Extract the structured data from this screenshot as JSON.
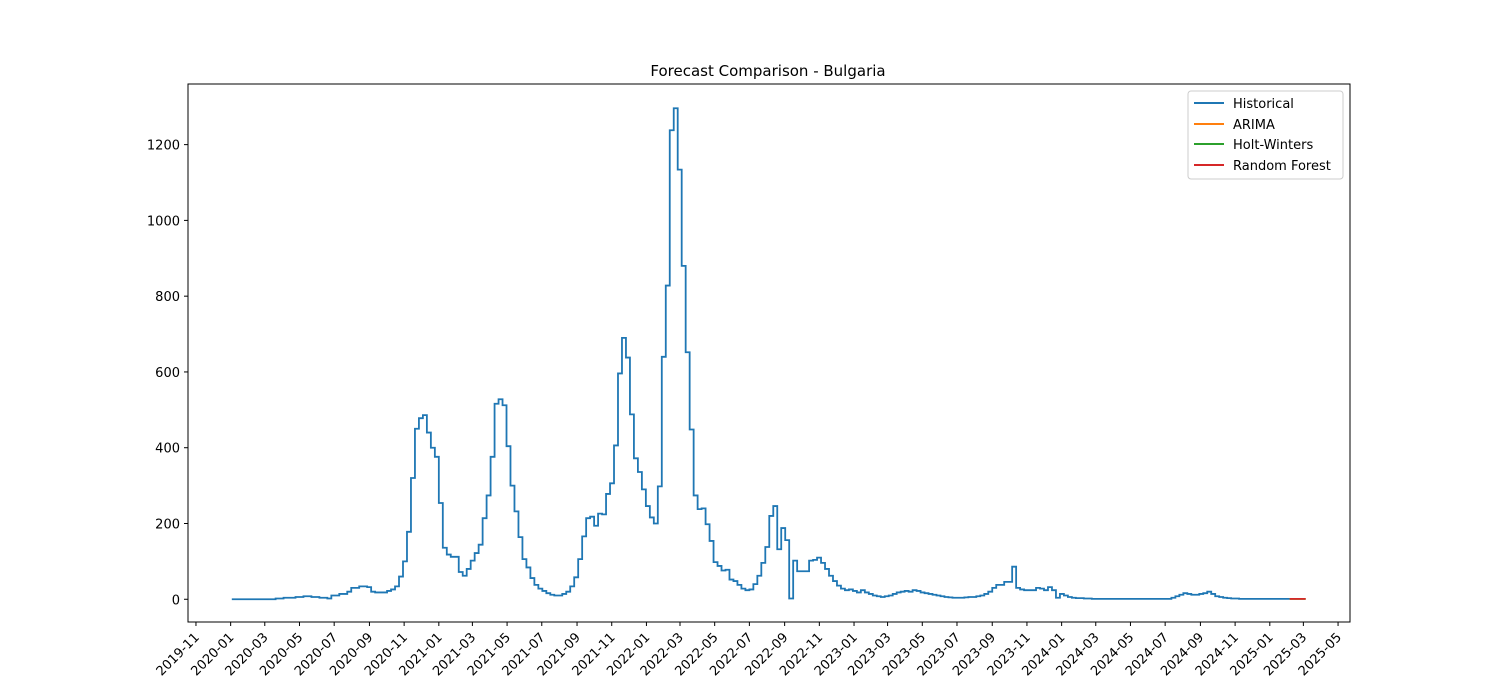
{
  "chart_data": {
    "type": "line",
    "title": "Forecast Comparison - Bulgaria",
    "xlabel": "",
    "ylabel": "",
    "x_range": [
      "2019-10-18",
      "2025-05-22"
    ],
    "ylim": [
      -60,
      1360
    ],
    "y_ticks": [
      0,
      200,
      400,
      600,
      800,
      1000,
      1200
    ],
    "x_ticks": [
      "2019-11",
      "2020-01",
      "2020-03",
      "2020-05",
      "2020-07",
      "2020-09",
      "2020-11",
      "2021-01",
      "2021-03",
      "2021-05",
      "2021-07",
      "2021-09",
      "2021-11",
      "2022-01",
      "2022-03",
      "2022-05",
      "2022-07",
      "2022-09",
      "2022-11",
      "2023-01",
      "2023-03",
      "2023-05",
      "2023-07",
      "2023-09",
      "2023-11",
      "2024-01",
      "2024-03",
      "2024-05",
      "2024-07",
      "2024-09",
      "2024-11",
      "2025-01",
      "2025-03",
      "2025-05"
    ],
    "grid": false,
    "legend_position": "top-right",
    "series": [
      {
        "name": "Historical",
        "color": "#1f77b4",
        "step": true,
        "points": [
          [
            "2020-01-03",
            0
          ],
          [
            "2020-03-13",
            0
          ],
          [
            "2020-03-20",
            2
          ],
          [
            "2020-04-03",
            4
          ],
          [
            "2020-04-24",
            6
          ],
          [
            "2020-05-08",
            8
          ],
          [
            "2020-05-22",
            6
          ],
          [
            "2020-06-05",
            4
          ],
          [
            "2020-06-19",
            2
          ],
          [
            "2020-06-26",
            10
          ],
          [
            "2020-07-10",
            14
          ],
          [
            "2020-07-24",
            20
          ],
          [
            "2020-07-31",
            30
          ],
          [
            "2020-08-14",
            34
          ],
          [
            "2020-08-28",
            32
          ],
          [
            "2020-09-04",
            20
          ],
          [
            "2020-09-11",
            18
          ],
          [
            "2020-09-25",
            18
          ],
          [
            "2020-10-02",
            22
          ],
          [
            "2020-10-09",
            26
          ],
          [
            "2020-10-16",
            34
          ],
          [
            "2020-10-23",
            60
          ],
          [
            "2020-10-30",
            100
          ],
          [
            "2020-11-06",
            178
          ],
          [
            "2020-11-13",
            320
          ],
          [
            "2020-11-20",
            450
          ],
          [
            "2020-11-27",
            478
          ],
          [
            "2020-12-04",
            486
          ],
          [
            "2020-12-11",
            440
          ],
          [
            "2020-12-18",
            400
          ],
          [
            "2020-12-25",
            376
          ],
          [
            "2021-01-01",
            254
          ],
          [
            "2021-01-08",
            136
          ],
          [
            "2021-01-15",
            118
          ],
          [
            "2021-01-22",
            112
          ],
          [
            "2021-02-05",
            72
          ],
          [
            "2021-02-12",
            62
          ],
          [
            "2021-02-19",
            80
          ],
          [
            "2021-02-26",
            102
          ],
          [
            "2021-03-05",
            122
          ],
          [
            "2021-03-12",
            144
          ],
          [
            "2021-03-19",
            214
          ],
          [
            "2021-03-26",
            274
          ],
          [
            "2021-04-02",
            376
          ],
          [
            "2021-04-09",
            516
          ],
          [
            "2021-04-16",
            528
          ],
          [
            "2021-04-23",
            512
          ],
          [
            "2021-04-30",
            404
          ],
          [
            "2021-05-07",
            300
          ],
          [
            "2021-05-14",
            232
          ],
          [
            "2021-05-21",
            164
          ],
          [
            "2021-05-28",
            106
          ],
          [
            "2021-06-04",
            84
          ],
          [
            "2021-06-11",
            56
          ],
          [
            "2021-06-18",
            38
          ],
          [
            "2021-06-25",
            28
          ],
          [
            "2021-07-02",
            22
          ],
          [
            "2021-07-09",
            16
          ],
          [
            "2021-07-16",
            12
          ],
          [
            "2021-07-23",
            10
          ],
          [
            "2021-07-30",
            10
          ],
          [
            "2021-08-06",
            14
          ],
          [
            "2021-08-13",
            20
          ],
          [
            "2021-08-20",
            34
          ],
          [
            "2021-08-27",
            58
          ],
          [
            "2021-09-03",
            106
          ],
          [
            "2021-09-10",
            166
          ],
          [
            "2021-09-17",
            214
          ],
          [
            "2021-09-24",
            218
          ],
          [
            "2021-10-01",
            194
          ],
          [
            "2021-10-08",
            226
          ],
          [
            "2021-10-15",
            224
          ],
          [
            "2021-10-22",
            278
          ],
          [
            "2021-10-29",
            306
          ],
          [
            "2021-11-05",
            406
          ],
          [
            "2021-11-12",
            596
          ],
          [
            "2021-11-19",
            690
          ],
          [
            "2021-11-26",
            638
          ],
          [
            "2021-12-03",
            488
          ],
          [
            "2021-12-10",
            372
          ],
          [
            "2021-12-17",
            336
          ],
          [
            "2021-12-24",
            290
          ],
          [
            "2021-12-31",
            246
          ],
          [
            "2022-01-07",
            216
          ],
          [
            "2022-01-14",
            200
          ],
          [
            "2022-01-21",
            298
          ],
          [
            "2022-01-28",
            640
          ],
          [
            "2022-02-04",
            828
          ],
          [
            "2022-02-11",
            1238
          ],
          [
            "2022-02-18",
            1296
          ],
          [
            "2022-02-25",
            1134
          ],
          [
            "2022-03-04",
            880
          ],
          [
            "2022-03-11",
            652
          ],
          [
            "2022-03-18",
            448
          ],
          [
            "2022-03-25",
            274
          ],
          [
            "2022-04-01",
            238
          ],
          [
            "2022-04-08",
            240
          ],
          [
            "2022-04-15",
            198
          ],
          [
            "2022-04-22",
            154
          ],
          [
            "2022-04-29",
            98
          ],
          [
            "2022-05-06",
            88
          ],
          [
            "2022-05-13",
            76
          ],
          [
            "2022-05-20",
            78
          ],
          [
            "2022-05-27",
            52
          ],
          [
            "2022-06-03",
            48
          ],
          [
            "2022-06-10",
            38
          ],
          [
            "2022-06-17",
            28
          ],
          [
            "2022-06-24",
            24
          ],
          [
            "2022-07-01",
            26
          ],
          [
            "2022-07-08",
            40
          ],
          [
            "2022-07-15",
            62
          ],
          [
            "2022-07-22",
            96
          ],
          [
            "2022-07-29",
            138
          ],
          [
            "2022-08-05",
            220
          ],
          [
            "2022-08-12",
            246
          ],
          [
            "2022-08-19",
            132
          ],
          [
            "2022-08-26",
            188
          ],
          [
            "2022-09-02",
            156
          ],
          [
            "2022-09-09",
            2
          ],
          [
            "2022-09-16",
            102
          ],
          [
            "2022-09-23",
            74
          ],
          [
            "2022-09-30",
            74
          ],
          [
            "2022-10-07",
            74
          ],
          [
            "2022-10-14",
            102
          ],
          [
            "2022-10-21",
            104
          ],
          [
            "2022-10-28",
            110
          ],
          [
            "2022-11-04",
            96
          ],
          [
            "2022-11-11",
            80
          ],
          [
            "2022-11-18",
            62
          ],
          [
            "2022-11-25",
            48
          ],
          [
            "2022-12-02",
            36
          ],
          [
            "2022-12-09",
            28
          ],
          [
            "2022-12-16",
            24
          ],
          [
            "2022-12-23",
            26
          ],
          [
            "2022-12-30",
            22
          ],
          [
            "2023-01-06",
            18
          ],
          [
            "2023-01-13",
            24
          ],
          [
            "2023-01-20",
            18
          ],
          [
            "2023-01-27",
            14
          ],
          [
            "2023-02-03",
            10
          ],
          [
            "2023-02-10",
            8
          ],
          [
            "2023-02-17",
            6
          ],
          [
            "2023-02-24",
            8
          ],
          [
            "2023-03-03",
            10
          ],
          [
            "2023-03-10",
            14
          ],
          [
            "2023-03-17",
            18
          ],
          [
            "2023-03-24",
            20
          ],
          [
            "2023-03-31",
            22
          ],
          [
            "2023-04-07",
            20
          ],
          [
            "2023-04-14",
            24
          ],
          [
            "2023-04-21",
            22
          ],
          [
            "2023-04-28",
            18
          ],
          [
            "2023-05-05",
            16
          ],
          [
            "2023-05-12",
            14
          ],
          [
            "2023-05-19",
            12
          ],
          [
            "2023-05-26",
            10
          ],
          [
            "2023-06-02",
            8
          ],
          [
            "2023-06-09",
            6
          ],
          [
            "2023-06-16",
            5
          ],
          [
            "2023-06-23",
            4
          ],
          [
            "2023-06-30",
            4
          ],
          [
            "2023-07-07",
            4
          ],
          [
            "2023-07-14",
            5
          ],
          [
            "2023-07-21",
            6
          ],
          [
            "2023-07-28",
            6
          ],
          [
            "2023-08-04",
            8
          ],
          [
            "2023-08-11",
            10
          ],
          [
            "2023-08-18",
            14
          ],
          [
            "2023-08-25",
            20
          ],
          [
            "2023-09-01",
            30
          ],
          [
            "2023-09-08",
            38
          ],
          [
            "2023-09-15",
            38
          ],
          [
            "2023-09-22",
            46
          ],
          [
            "2023-09-29",
            46
          ],
          [
            "2023-10-06",
            86
          ],
          [
            "2023-10-13",
            30
          ],
          [
            "2023-10-20",
            26
          ],
          [
            "2023-10-27",
            24
          ],
          [
            "2023-11-10",
            24
          ],
          [
            "2023-11-17",
            30
          ],
          [
            "2023-11-24",
            28
          ],
          [
            "2023-12-01",
            24
          ],
          [
            "2023-12-08",
            32
          ],
          [
            "2023-12-15",
            24
          ],
          [
            "2023-12-22",
            4
          ],
          [
            "2023-12-29",
            14
          ],
          [
            "2024-01-05",
            10
          ],
          [
            "2024-01-12",
            6
          ],
          [
            "2024-01-19",
            4
          ],
          [
            "2024-01-26",
            3
          ],
          [
            "2024-02-09",
            2
          ],
          [
            "2024-02-23",
            1
          ],
          [
            "2024-07-05",
            1
          ],
          [
            "2024-07-12",
            4
          ],
          [
            "2024-07-19",
            8
          ],
          [
            "2024-07-26",
            12
          ],
          [
            "2024-08-02",
            16
          ],
          [
            "2024-08-09",
            14
          ],
          [
            "2024-08-16",
            12
          ],
          [
            "2024-08-30",
            14
          ],
          [
            "2024-09-06",
            16
          ],
          [
            "2024-09-13",
            20
          ],
          [
            "2024-09-20",
            14
          ],
          [
            "2024-09-27",
            8
          ],
          [
            "2024-10-04",
            6
          ],
          [
            "2024-10-11",
            4
          ],
          [
            "2024-10-18",
            3
          ],
          [
            "2024-10-25",
            2
          ],
          [
            "2024-11-08",
            1
          ],
          [
            "2025-02-05",
            1
          ]
        ]
      },
      {
        "name": "ARIMA",
        "color": "#ff7f0e",
        "points": [
          [
            "2025-02-05",
            1
          ],
          [
            "2025-03-05",
            1
          ]
        ]
      },
      {
        "name": "Holt-Winters",
        "color": "#2ca02c",
        "points": [
          [
            "2025-02-05",
            1
          ],
          [
            "2025-03-05",
            1
          ]
        ]
      },
      {
        "name": "Random Forest",
        "color": "#d62728",
        "points": [
          [
            "2025-02-05",
            1
          ],
          [
            "2025-03-05",
            1
          ]
        ]
      }
    ]
  }
}
